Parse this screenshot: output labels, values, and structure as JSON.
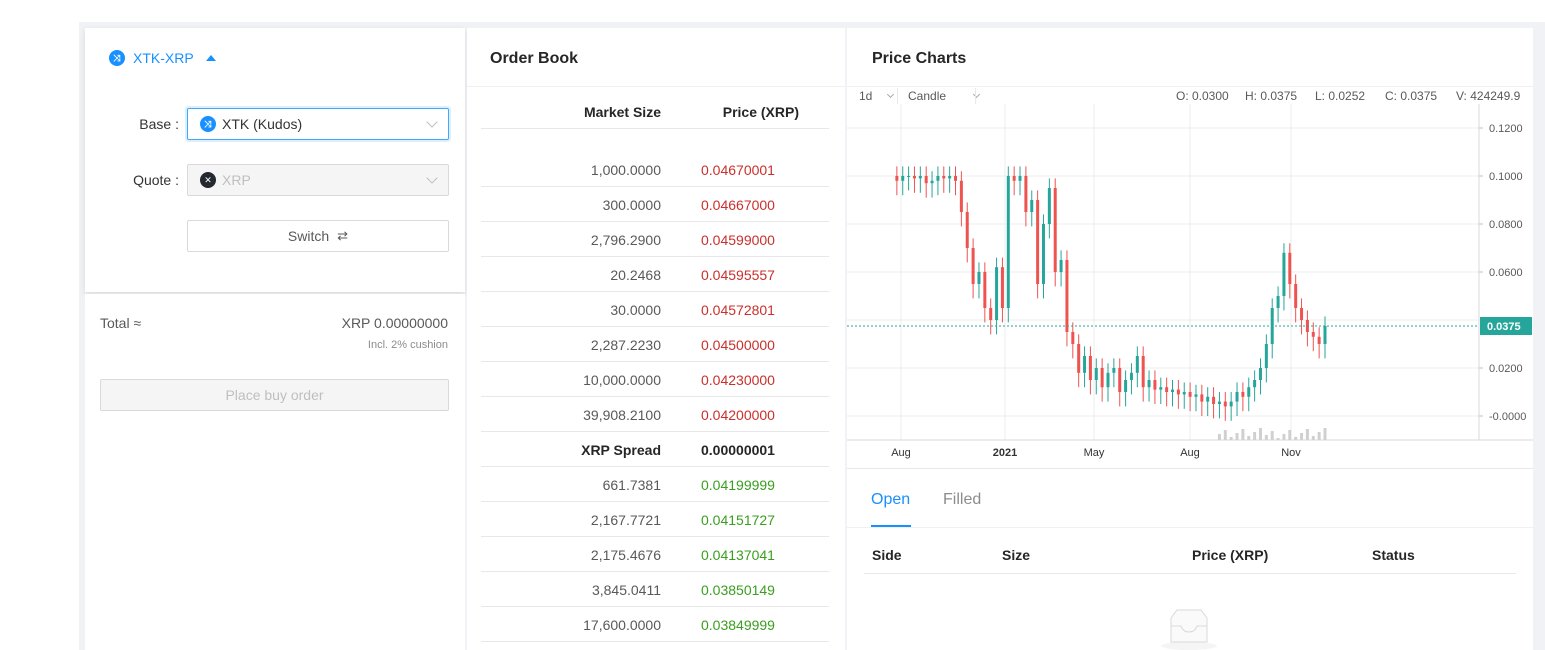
{
  "pair": {
    "label": "XTK-XRP",
    "base_icon": "xtk-coin-icon",
    "expand_icon": "caret-up-icon"
  },
  "form": {
    "base_label": "Base",
    "base_value": "XTK (Kudos)",
    "quote_label": "Quote",
    "quote_value": "XRP",
    "switch_label": "Switch",
    "switch_icon": "swap-icon"
  },
  "summary": {
    "total_label": "Total ≈",
    "total_value": "XRP 0.00000000",
    "cushion_note": "Incl. 2% cushion",
    "buy_button": "Place buy order"
  },
  "orderbook": {
    "title": "Order Book",
    "col_size": "Market Size",
    "col_price": "Price (XRP)",
    "asks": [
      {
        "size": "1,000.0000",
        "price": "0.04670001"
      },
      {
        "size": "300.0000",
        "price": "0.04667000"
      },
      {
        "size": "2,796.2900",
        "price": "0.04599000"
      },
      {
        "size": "20.2468",
        "price": "0.04595557"
      },
      {
        "size": "30.0000",
        "price": "0.04572801"
      },
      {
        "size": "2,287.2230",
        "price": "0.04500000"
      },
      {
        "size": "10,000.0000",
        "price": "0.04230000"
      },
      {
        "size": "39,908.2100",
        "price": "0.04200000"
      }
    ],
    "spread": {
      "label": "XRP Spread",
      "value": "0.00000001"
    },
    "bids": [
      {
        "size": "661.7381",
        "price": "0.04199999"
      },
      {
        "size": "2,167.7721",
        "price": "0.04151727"
      },
      {
        "size": "2,175.4676",
        "price": "0.04137041"
      },
      {
        "size": "3,845.0411",
        "price": "0.03850149"
      },
      {
        "size": "17,600.0000",
        "price": "0.03849999"
      }
    ]
  },
  "charts": {
    "title": "Price Charts",
    "interval": "1d",
    "chart_type": "Candle",
    "ohlcv": {
      "open": "O: 0.0300",
      "high": "H: 0.0375",
      "low": "L: 0.0252",
      "close": "C: 0.0375",
      "volume": "V: 424249.9"
    },
    "colors": {
      "up": "#26a69a",
      "down": "#ef5350",
      "last_price_bg": "#26a69a"
    }
  },
  "chart_data": {
    "type": "line",
    "x_ticks": [
      "Aug",
      "2021",
      "May",
      "Aug",
      "Nov"
    ],
    "y_ticks": [
      "0.1200",
      "0.1000",
      "0.0800",
      "0.0600",
      "0.0200",
      "-0.0000"
    ],
    "ylim": [
      -0.01,
      0.13
    ],
    "last_price": "0.0375",
    "grid": true,
    "series": [
      {
        "values": [
          0.1,
          0.098,
          0.1,
          0.1,
          0.099,
          0.1,
          0.097,
          0.098,
          0.1,
          0.099,
          0.1,
          0.098,
          0.085,
          0.07,
          0.055,
          0.06,
          0.045,
          0.04,
          0.062,
          0.045,
          0.1,
          0.098,
          0.1,
          0.085,
          0.09,
          0.055,
          0.08,
          0.095,
          0.06,
          0.065,
          0.035,
          0.03,
          0.018,
          0.025,
          0.015,
          0.02,
          0.012,
          0.018,
          0.02,
          0.01,
          0.015,
          0.018,
          0.025,
          0.012,
          0.015,
          0.011,
          0.012,
          0.01,
          0.011,
          0.009,
          0.01,
          0.008,
          0.009,
          0.006,
          0.008,
          0.005,
          0.006,
          0.004,
          0.006,
          0.01,
          0.008,
          0.012,
          0.015,
          0.02,
          0.03,
          0.045,
          0.05,
          0.068,
          0.055,
          0.045,
          0.04,
          0.035,
          0.033,
          0.03,
          0.0375
        ]
      }
    ]
  },
  "orders": {
    "tab_open": "Open",
    "tab_filled": "Filled",
    "col_side": "Side",
    "col_size": "Size",
    "col_price": "Price (XRP)",
    "col_status": "Status",
    "empty_icon": "empty-inbox-icon"
  }
}
